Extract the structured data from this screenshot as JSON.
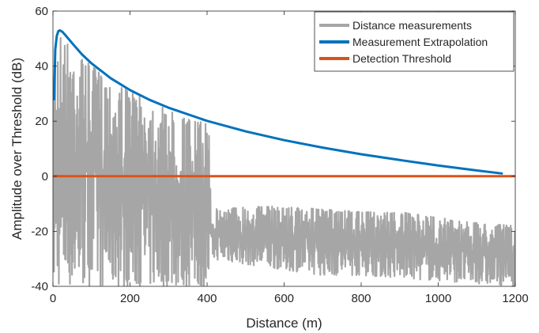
{
  "chart_data": {
    "type": "line",
    "xlabel": "Distance (m)",
    "ylabel": "Amplitude over Threshold (dB)",
    "xlim": [
      0,
      1200
    ],
    "ylim": [
      -40,
      60
    ],
    "xticks": [
      0,
      200,
      400,
      600,
      800,
      1000,
      1200
    ],
    "yticks": [
      -40,
      -20,
      0,
      20,
      40,
      60
    ],
    "grid": false,
    "legend_position": "top-right",
    "legend": [
      "Distance measurements",
      "Measurement Extrapolation",
      "Detection Threshold"
    ],
    "series": [
      {
        "name": "Distance measurements",
        "color": "#a6a6a6",
        "style": "dense noisy oscillation",
        "x_range": [
          0,
          1200
        ],
        "upper_envelope": {
          "x": [
            0,
            5,
            10,
            20,
            40,
            60,
            100,
            150,
            200,
            250,
            300,
            350,
            400,
            407,
            410,
            500,
            600,
            700,
            800,
            900,
            1000,
            1100,
            1200
          ],
          "y": [
            28,
            48,
            52,
            52,
            48,
            45,
            40,
            35,
            31,
            27,
            24,
            21,
            19,
            18,
            -12,
            -11,
            -11,
            -12,
            -13,
            -13,
            -15,
            -17,
            -18
          ]
        },
        "lower_envelope": {
          "x": [
            0,
            100,
            200,
            300,
            400,
            407,
            410,
            500,
            600,
            700,
            800,
            900,
            1000,
            1100,
            1200
          ],
          "y": [
            -40,
            -40,
            -40,
            -40,
            -40,
            -40,
            -30,
            -32,
            -34,
            -36,
            -36,
            -37,
            -38,
            -39,
            -40
          ]
        }
      },
      {
        "name": "Measurement Extrapolation",
        "color": "#0072bd",
        "x": [
          3,
          6,
          10,
          14,
          18,
          25,
          35,
          50,
          75,
          100,
          150,
          200,
          250,
          300,
          400,
          500,
          600,
          700,
          800,
          900,
          1000,
          1100,
          1165
        ],
        "y": [
          28,
          46,
          51,
          52.7,
          53,
          52.4,
          50.8,
          48.3,
          44.3,
          41,
          35.6,
          31.3,
          27.8,
          24.9,
          20.1,
          16.3,
          13.1,
          10.4,
          8,
          5.9,
          3.9,
          2.1,
          1
        ]
      },
      {
        "name": "Detection Threshold",
        "color": "#d95319",
        "x": [
          0,
          1200
        ],
        "y": [
          0,
          0
        ]
      }
    ]
  }
}
